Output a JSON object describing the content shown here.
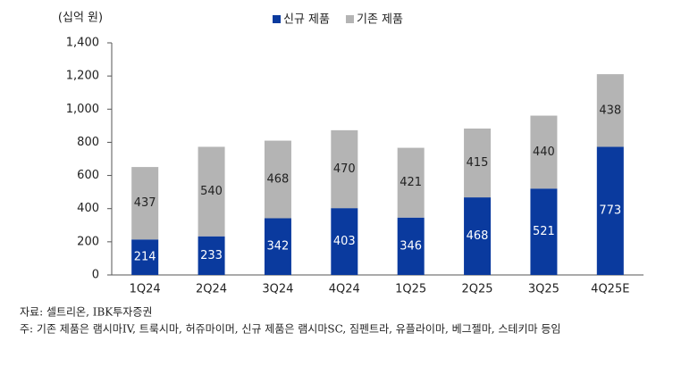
{
  "chart_data": {
    "type": "bar",
    "stacked": true,
    "y_axis_label": "(십억 원)",
    "categories": [
      "1Q24",
      "2Q24",
      "3Q24",
      "4Q24",
      "1Q25",
      "2Q25",
      "3Q25",
      "4Q25E"
    ],
    "series": [
      {
        "name": "신규 제품",
        "color": "#0a3a9e",
        "label_color": "#ffffff",
        "values": [
          214,
          233,
          342,
          403,
          346,
          468,
          521,
          773
        ]
      },
      {
        "name": "기존 제품",
        "color": "#b4b4b4",
        "label_color": "#222222",
        "values": [
          437,
          540,
          468,
          470,
          421,
          415,
          440,
          438
        ]
      }
    ],
    "ylim": [
      0,
      1400
    ],
    "yticks": [
      0,
      200,
      400,
      600,
      800,
      {
        "value": 1000,
        "label": "1,000"
      },
      {
        "value": 1200,
        "label": "1,200"
      },
      {
        "value": 1400,
        "label": "1,400"
      }
    ],
    "grid": false,
    "legend": "top",
    "notes": [
      "자료: 셀트리온, IBK투자증권",
      "주: 기존 제품은 램시마IV, 트룩시마, 허쥬마이머, 신규 제품은 램시마SC, 짐펜트라, 유플라이마, 베그젤마, 스테키마 등임"
    ]
  }
}
